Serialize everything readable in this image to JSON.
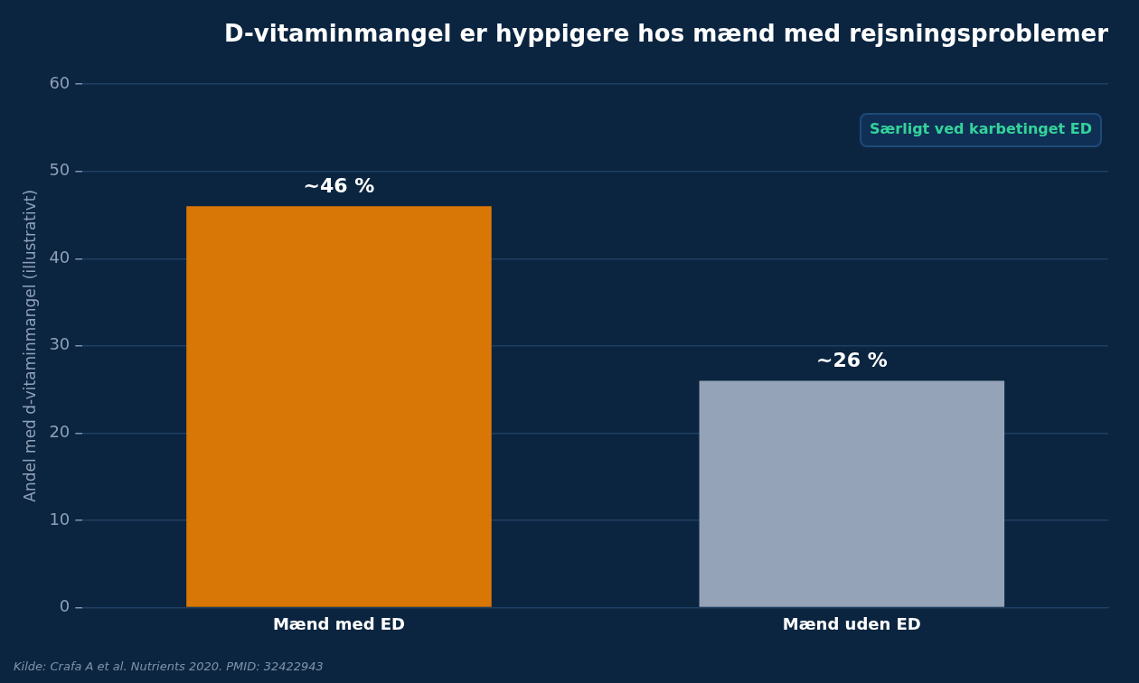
{
  "chart_data": {
    "type": "bar",
    "title": "D-vitaminmangel er hyppigere hos mænd med rejsningsproblemer",
    "ylabel": "Andel med d-vitaminmangel (illustrativt)",
    "categories": [
      "Mænd med ED",
      "Mænd uden ED"
    ],
    "values": [
      46,
      26
    ],
    "colors": [
      "#d97706",
      "#94a3b8"
    ],
    "value_labels": [
      "~46 %",
      "~26 %"
    ],
    "ylim": [
      0,
      60
    ],
    "yticks": [
      0,
      10,
      20,
      30,
      40,
      50,
      60
    ],
    "grid": "y",
    "annotations": [
      "Særligt ved karbetinget ED",
      "Kilde: Crafa A et al. Nutrients 2020. PMID: 32422943"
    ]
  }
}
